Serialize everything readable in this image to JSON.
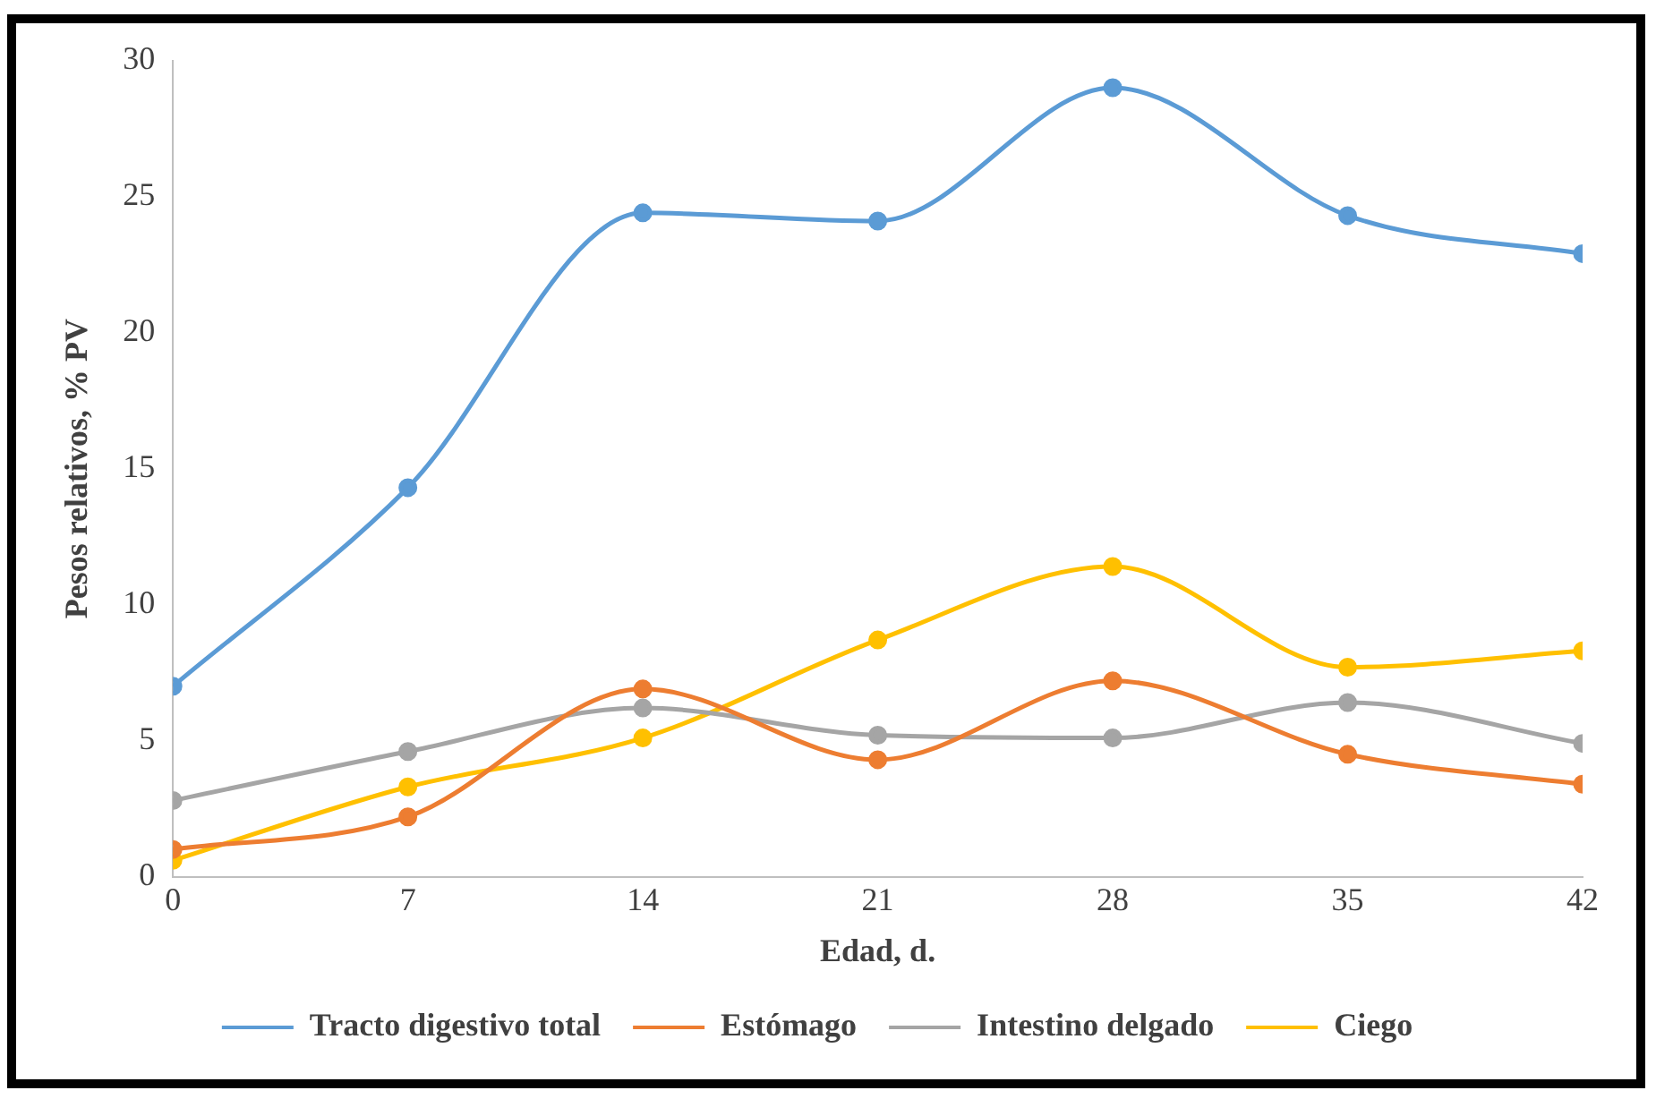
{
  "chart_data": {
    "type": "line",
    "xlabel": "Edad, d.",
    "ylabel": "Pesos relativos, % PV",
    "x": [
      0,
      7,
      14,
      21,
      28,
      35,
      42
    ],
    "xlim": [
      0,
      42
    ],
    "xticks": [
      0,
      7,
      14,
      21,
      28,
      35,
      42
    ],
    "ylim": [
      0,
      30
    ],
    "yticks": [
      0,
      5,
      10,
      15,
      20,
      25,
      30
    ],
    "grid": false,
    "legend": "bottom",
    "marker": "circle",
    "series": [
      {
        "name": "Tracto digestivo total",
        "color": "#5b9bd5",
        "values": [
          7.0,
          14.3,
          24.4,
          24.1,
          29.0,
          24.3,
          22.9
        ]
      },
      {
        "name": "Estómago",
        "color": "#ed7d31",
        "values": [
          1.0,
          2.2,
          6.9,
          4.3,
          7.2,
          4.5,
          3.4
        ]
      },
      {
        "name": "Intestino delgado",
        "color": "#a5a5a5",
        "values": [
          2.8,
          4.6,
          6.2,
          5.2,
          5.1,
          6.4,
          4.9
        ]
      },
      {
        "name": "Ciego",
        "color": "#ffc000",
        "values": [
          0.6,
          3.3,
          5.1,
          8.7,
          11.4,
          7.7,
          8.3
        ]
      }
    ]
  }
}
